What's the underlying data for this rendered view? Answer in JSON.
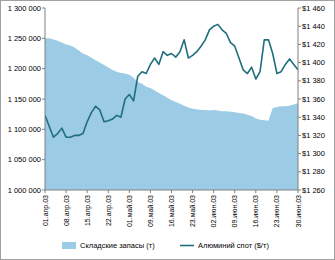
{
  "chart_data": {
    "type": "line",
    "categories": [
      "01.апр.03",
      null,
      null,
      null,
      null,
      "08.апр.03",
      null,
      null,
      null,
      null,
      "15.апр.03",
      null,
      null,
      null,
      null,
      "22.апр.03",
      null,
      null,
      null,
      null,
      "01.май.03",
      null,
      null,
      null,
      null,
      "09.май.03",
      null,
      null,
      null,
      null,
      "16.май.03",
      null,
      null,
      null,
      null,
      "23.май.03",
      null,
      null,
      null,
      null,
      "02.июн.03",
      null,
      null,
      null,
      null,
      "09.июн.03",
      null,
      null,
      null,
      null,
      "16.июн.03",
      null,
      null,
      null,
      null,
      "23.июн.03",
      null,
      null,
      null,
      null,
      "30.июн.03"
    ],
    "series": [
      {
        "name": "Складские запасы (т)",
        "type": "area",
        "color": "#9ccbe6",
        "axis": "y",
        "values": [
          1250000,
          1250000,
          1248000,
          1246000,
          1243000,
          1240000,
          1238000,
          1235000,
          1230000,
          1225000,
          1222000,
          1218000,
          1214000,
          1210000,
          1206000,
          1202000,
          1198000,
          1195000,
          1193000,
          1192000,
          1190000,
          1185000,
          1178000,
          1175000,
          1170000,
          1168000,
          1164000,
          1160000,
          1156000,
          1152000,
          1148000,
          1145000,
          1142000,
          1139000,
          1136000,
          1134000,
          1133000,
          1132000,
          1132000,
          1131000,
          1132000,
          1131000,
          1130000,
          1130000,
          1129000,
          1128000,
          1127000,
          1126000,
          1124000,
          1122000,
          1118000,
          1116000,
          1115000,
          1114000,
          1135000,
          1137000,
          1138000,
          1138000,
          1139000,
          1141000,
          1143000
        ]
      },
      {
        "name": "Алюминий спот ($/т)",
        "type": "line",
        "color": "#1f6f7c",
        "axis": "y2",
        "values": [
          1342,
          1330,
          1318,
          1322,
          1328,
          1318,
          1318,
          1320,
          1320,
          1322,
          1335,
          1345,
          1352,
          1348,
          1335,
          1336,
          1338,
          1342,
          1340,
          1360,
          1365,
          1358,
          1385,
          1390,
          1388,
          1398,
          1405,
          1398,
          1412,
          1408,
          1410,
          1406,
          1412,
          1425,
          1405,
          1408,
          1412,
          1418,
          1425,
          1436,
          1440,
          1442,
          1436,
          1432,
          1422,
          1418,
          1405,
          1392,
          1388,
          1395,
          1382,
          1390,
          1425,
          1425,
          1410,
          1388,
          1390,
          1398,
          1404,
          1398,
          1392
        ]
      }
    ],
    "ylim": [
      1000000,
      1300000
    ],
    "yticks": [
      {
        "value": 1000000,
        "label": "1 000 000"
      },
      {
        "value": 1050000,
        "label": "1 050 000"
      },
      {
        "value": 1100000,
        "label": "1 100 000"
      },
      {
        "value": 1150000,
        "label": "1 150 000"
      },
      {
        "value": 1200000,
        "label": "1 200 000"
      },
      {
        "value": 1250000,
        "label": "1 250 000"
      },
      {
        "value": 1300000,
        "label": "1 300 000"
      }
    ],
    "y2lim": [
      1260,
      1460
    ],
    "y2ticks": [
      {
        "value": 1260,
        "label": "$1 260"
      },
      {
        "value": 1280,
        "label": "$1 280"
      },
      {
        "value": 1300,
        "label": "$1 300"
      },
      {
        "value": 1320,
        "label": "$1 320"
      },
      {
        "value": 1340,
        "label": "$1 340"
      },
      {
        "value": 1360,
        "label": "$1 360"
      },
      {
        "value": 1380,
        "label": "$1 380"
      },
      {
        "value": 1400,
        "label": "$1 400"
      },
      {
        "value": 1420,
        "label": "$1 420"
      },
      {
        "value": 1440,
        "label": "$1 440"
      },
      {
        "value": 1460,
        "label": "$1 460"
      }
    ],
    "grid": false,
    "legend": "bottom"
  }
}
